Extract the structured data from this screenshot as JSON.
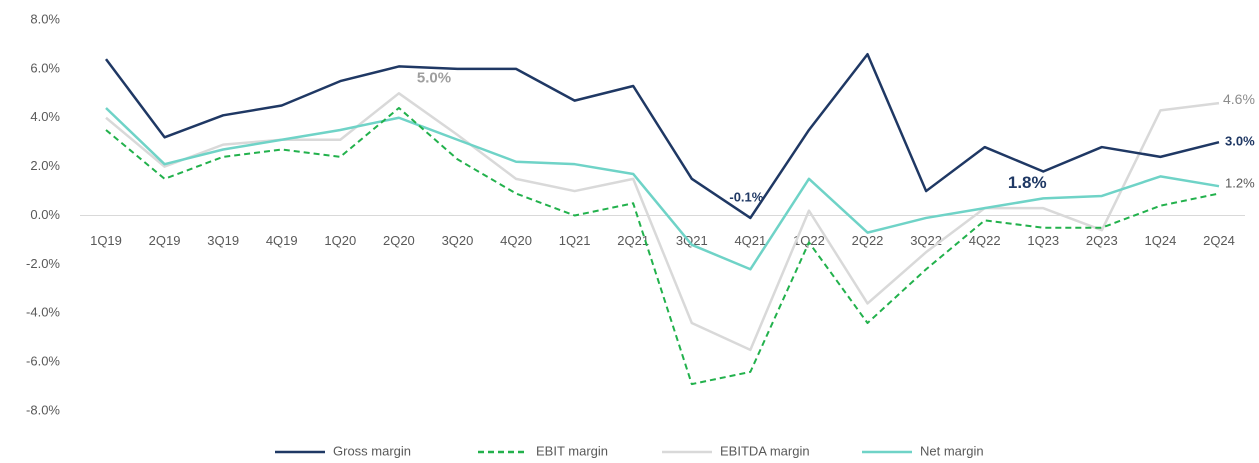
{
  "chart_data": {
    "type": "line",
    "categories": [
      "1Q19",
      "2Q19",
      "3Q19",
      "4Q19",
      "1Q20",
      "2Q20",
      "3Q20",
      "4Q20",
      "1Q21",
      "2Q21",
      "3Q21",
      "4Q21",
      "1Q22",
      "2Q22",
      "3Q22",
      "4Q22",
      "1Q23",
      "2Q23",
      "1Q24",
      "2Q24"
    ],
    "ylim": [
      -8,
      8
    ],
    "yticks": [
      {
        "value": 8,
        "label": "8.0%"
      },
      {
        "value": 6,
        "label": "6.0%"
      },
      {
        "value": 4,
        "label": "4.0%"
      },
      {
        "value": 2,
        "label": "2.0%"
      },
      {
        "value": 0,
        "label": "0.0%"
      },
      {
        "value": -2,
        "label": "-2.0%"
      },
      {
        "value": -4,
        "label": "-4.0%"
      },
      {
        "value": -6,
        "label": "-6.0%"
      },
      {
        "value": -8,
        "label": "-8.0%"
      }
    ],
    "grid": false,
    "legend": "bottom",
    "series": [
      {
        "name": "Gross margin",
        "color": "#1f3864",
        "line_style": "solid",
        "values": [
          6.4,
          3.2,
          4.1,
          4.5,
          5.5,
          6.1,
          6.0,
          6.0,
          4.7,
          5.3,
          1.5,
          -0.1,
          3.5,
          6.6,
          1.0,
          2.8,
          1.8,
          2.8,
          2.4,
          3.0
        ],
        "value_labels": [
          null,
          null,
          null,
          null,
          null,
          null,
          null,
          null,
          null,
          null,
          null,
          "-0.1%",
          null,
          null,
          null,
          null,
          "1.8%",
          null,
          null,
          "3.0%"
        ]
      },
      {
        "name": "EBIT margin",
        "color": "#22b14c",
        "line_style": "dashed",
        "values": [
          3.5,
          1.5,
          2.4,
          2.7,
          2.4,
          4.4,
          2.3,
          0.9,
          0.0,
          0.5,
          -6.9,
          -6.4,
          -1.1,
          -4.4,
          -2.2,
          -0.2,
          -0.5,
          -0.5,
          0.4,
          0.9
        ]
      },
      {
        "name": "EBITDA margin",
        "color": "#d9d9d9",
        "line_style": "solid",
        "values": [
          4.0,
          2.0,
          2.9,
          3.1,
          3.1,
          5.0,
          3.3,
          1.5,
          1.0,
          1.5,
          -4.4,
          -5.5,
          0.2,
          -3.6,
          -1.5,
          0.3,
          0.3,
          -0.6,
          4.3,
          4.6
        ],
        "value_labels": [
          null,
          null,
          null,
          null,
          null,
          "5.0%",
          null,
          null,
          null,
          null,
          null,
          null,
          null,
          null,
          null,
          null,
          null,
          null,
          null,
          "4.6%"
        ]
      },
      {
        "name": "Net margin",
        "color": "#6fd3c7",
        "line_style": "solid",
        "values": [
          4.4,
          2.1,
          2.7,
          3.1,
          3.5,
          4.0,
          3.1,
          2.2,
          2.1,
          1.7,
          -1.2,
          -2.2,
          1.5,
          -0.7,
          -0.1,
          0.3,
          0.7,
          0.8,
          1.6,
          1.2
        ],
        "value_labels": [
          null,
          null,
          null,
          null,
          null,
          null,
          null,
          null,
          null,
          null,
          null,
          null,
          null,
          null,
          null,
          null,
          null,
          null,
          null,
          "1.2%"
        ]
      }
    ]
  }
}
